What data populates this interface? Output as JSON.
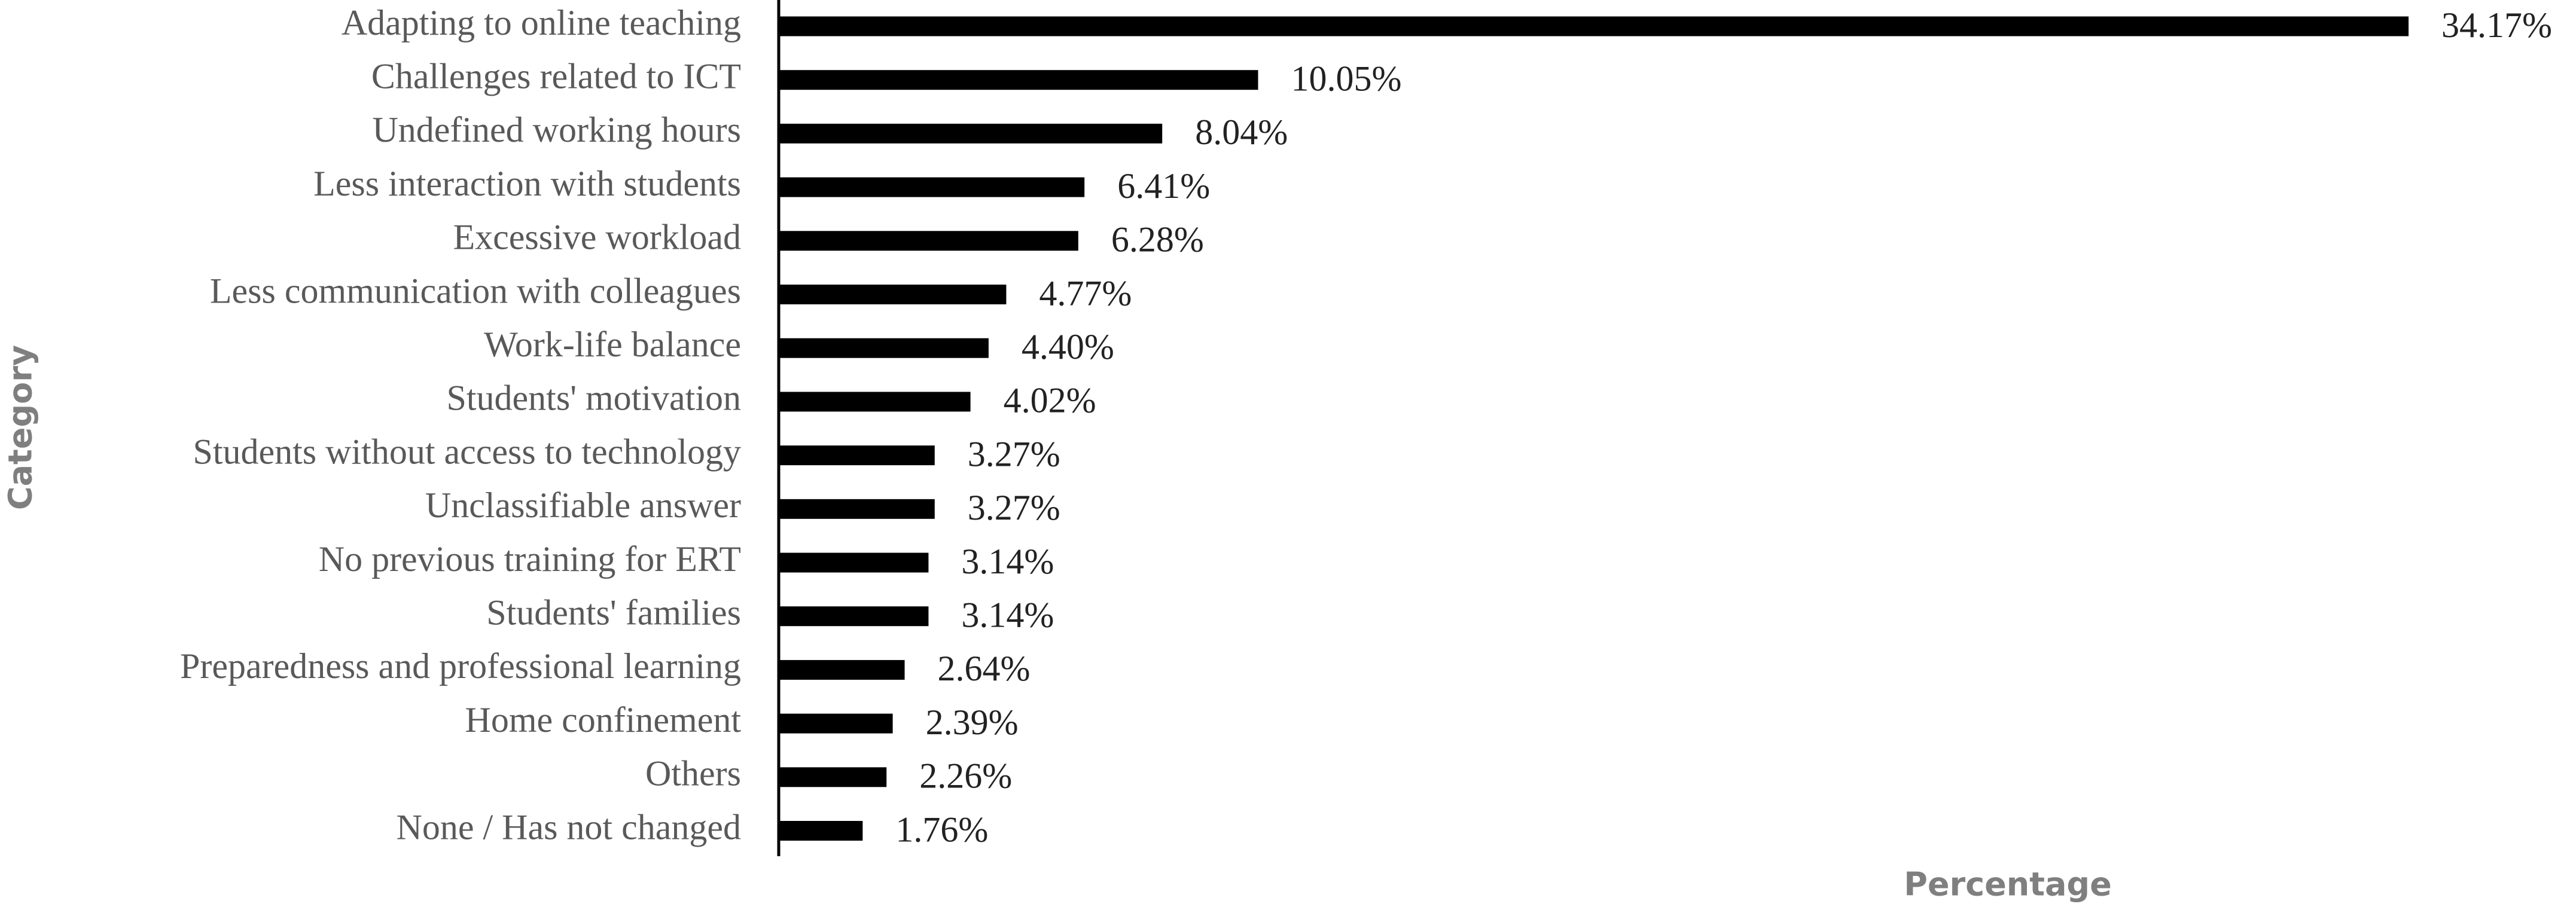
{
  "chart_data": {
    "type": "hbar",
    "x_label": "Percentage",
    "y_label": "Category",
    "categories": [
      "Adapting to online teaching",
      "Challenges related to ICT",
      "Undefined working hours",
      "Less interaction with students",
      "Excessive workload",
      "Less communication with colleagues",
      "Work-life balance",
      "Students' motivation",
      "Students without access to technology",
      "Unclassifiable answer",
      "No previous training for ERT",
      "Students' families",
      "Preparedness and professional learning",
      "Home confinement",
      "Others",
      "None / Has not changed"
    ],
    "values": [
      34.17,
      10.05,
      8.04,
      6.41,
      6.28,
      4.77,
      4.4,
      4.02,
      3.27,
      3.27,
      3.14,
      3.14,
      2.64,
      2.39,
      2.26,
      1.76
    ],
    "value_labels": [
      "34.17%",
      "10.05%",
      "8.04%",
      "6.41%",
      "6.28%",
      "4.77%",
      "4.40%",
      "4.02%",
      "3.27%",
      "3.27%",
      "3.14%",
      "3.14%",
      "2.64%",
      "2.39%",
      "2.26%",
      "1.76%"
    ],
    "color": "#000000",
    "xlim": [
      0,
      36
    ]
  }
}
